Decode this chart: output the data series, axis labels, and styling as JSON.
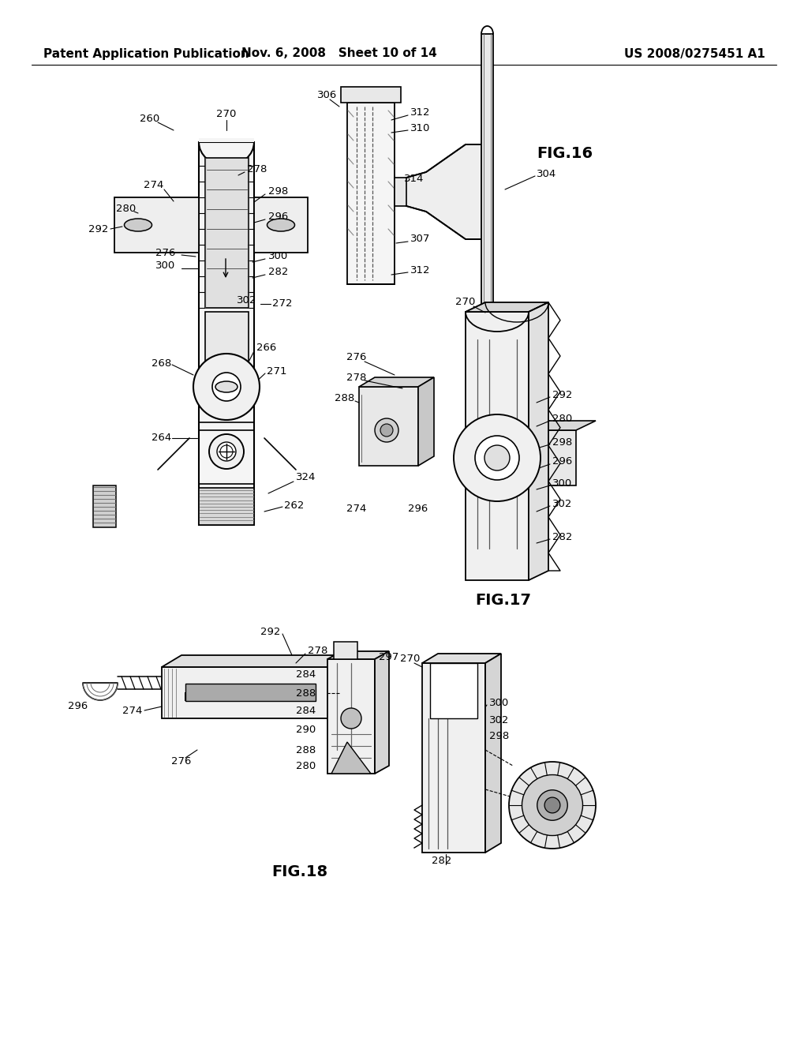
{
  "background_color": "#ffffff",
  "header_left": "Patent Application Publication",
  "header_middle": "Nov. 6, 2008   Sheet 10 of 14",
  "header_right": "US 2008/0275451 A1",
  "header_fontsize": 11,
  "label_fontsize": 14,
  "annot_fontsize": 9.5,
  "line_color": "#000000",
  "gray_light": "#e8e8e8",
  "gray_mid": "#cccccc",
  "gray_dark": "#aaaaaa",
  "white": "#ffffff"
}
